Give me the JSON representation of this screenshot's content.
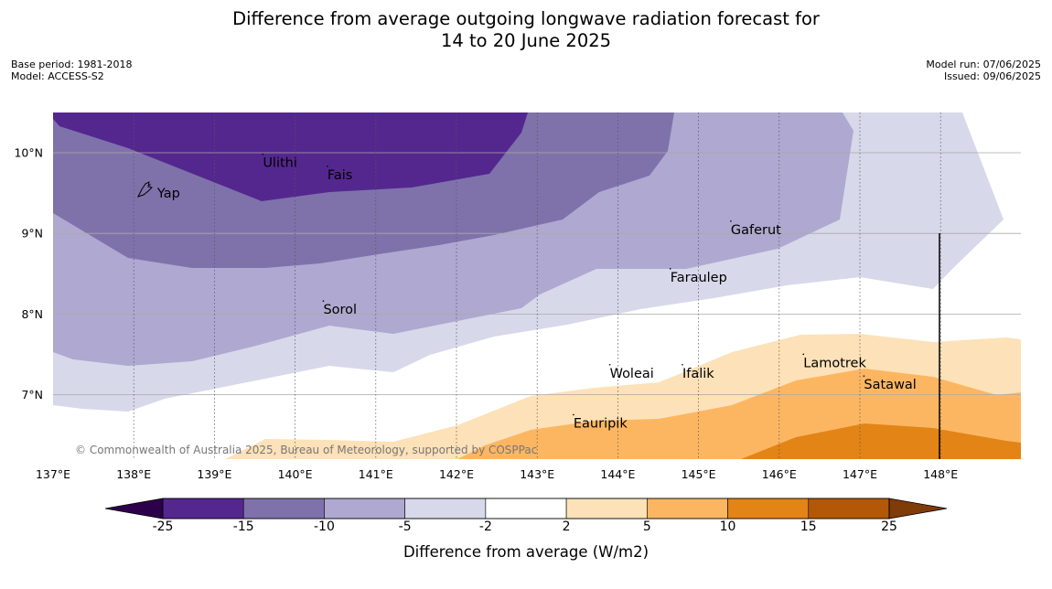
{
  "title_line1": "Difference from average outgoing longwave radiation forecast for",
  "title_line2": "14 to 20 June 2025",
  "base_period": "Base period: 1981-2018",
  "model": "Model: ACCESS-S2",
  "model_run": "Model run: 07/06/2025",
  "issued": "Issued: 09/06/2025",
  "copyright": "© Commonwealth of Australia 2025, Bureau of Meteorology, supported by COSPPac",
  "map": {
    "lon_range": [
      137,
      149
    ],
    "lat_range": [
      6.2,
      10.5
    ],
    "lon_ticks": [
      {
        "value": 137,
        "label": "137°E"
      },
      {
        "value": 138,
        "label": "138°E"
      },
      {
        "value": 139,
        "label": "139°E"
      },
      {
        "value": 140,
        "label": "140°E"
      },
      {
        "value": 141,
        "label": "141°E"
      },
      {
        "value": 142,
        "label": "142°E"
      },
      {
        "value": 143,
        "label": "143°E"
      },
      {
        "value": 144,
        "label": "144°E"
      },
      {
        "value": 145,
        "label": "145°E"
      },
      {
        "value": 146,
        "label": "146°E"
      },
      {
        "value": 147,
        "label": "147°E"
      },
      {
        "value": 148,
        "label": "148°E"
      }
    ],
    "lat_ticks": [
      {
        "value": 10,
        "label": "10°N"
      },
      {
        "value": 9,
        "label": "9°N"
      },
      {
        "value": 8,
        "label": "8°N"
      },
      {
        "value": 7,
        "label": "7°N"
      }
    ],
    "places": [
      {
        "name": "Yap",
        "lon": 138.2,
        "lat": 9.5
      },
      {
        "name": "Ulithi",
        "lon": 139.6,
        "lat": 9.88
      },
      {
        "name": "Fais",
        "lon": 140.4,
        "lat": 9.73
      },
      {
        "name": "Gaferut",
        "lon": 145.4,
        "lat": 9.05
      },
      {
        "name": "Faraulep",
        "lon": 144.65,
        "lat": 8.46
      },
      {
        "name": "Sorol",
        "lon": 140.35,
        "lat": 8.06
      },
      {
        "name": "Woleai",
        "lon": 143.9,
        "lat": 7.27
      },
      {
        "name": "Ifalik",
        "lon": 144.8,
        "lat": 7.27
      },
      {
        "name": "Lamotrek",
        "lon": 146.3,
        "lat": 7.4
      },
      {
        "name": "Satawal",
        "lon": 147.05,
        "lat": 7.13
      },
      {
        "name": "Eauripik",
        "lon": 143.45,
        "lat": 6.65
      }
    ]
  },
  "colorbar": {
    "title": "Difference from average (W/m2)",
    "levels": [
      "-25",
      "-15",
      "-10",
      "-5",
      "-2",
      "2",
      "5",
      "10",
      "15",
      "25"
    ],
    "colors": [
      "#54278f",
      "#7f72ab",
      "#afa8d0",
      "#d7d8ea",
      "#ffffff",
      "#fde1b8",
      "#fcb662",
      "#e38416",
      "#b35806"
    ],
    "under_color": "#2d004b",
    "over_color": "#7f3b08"
  }
}
